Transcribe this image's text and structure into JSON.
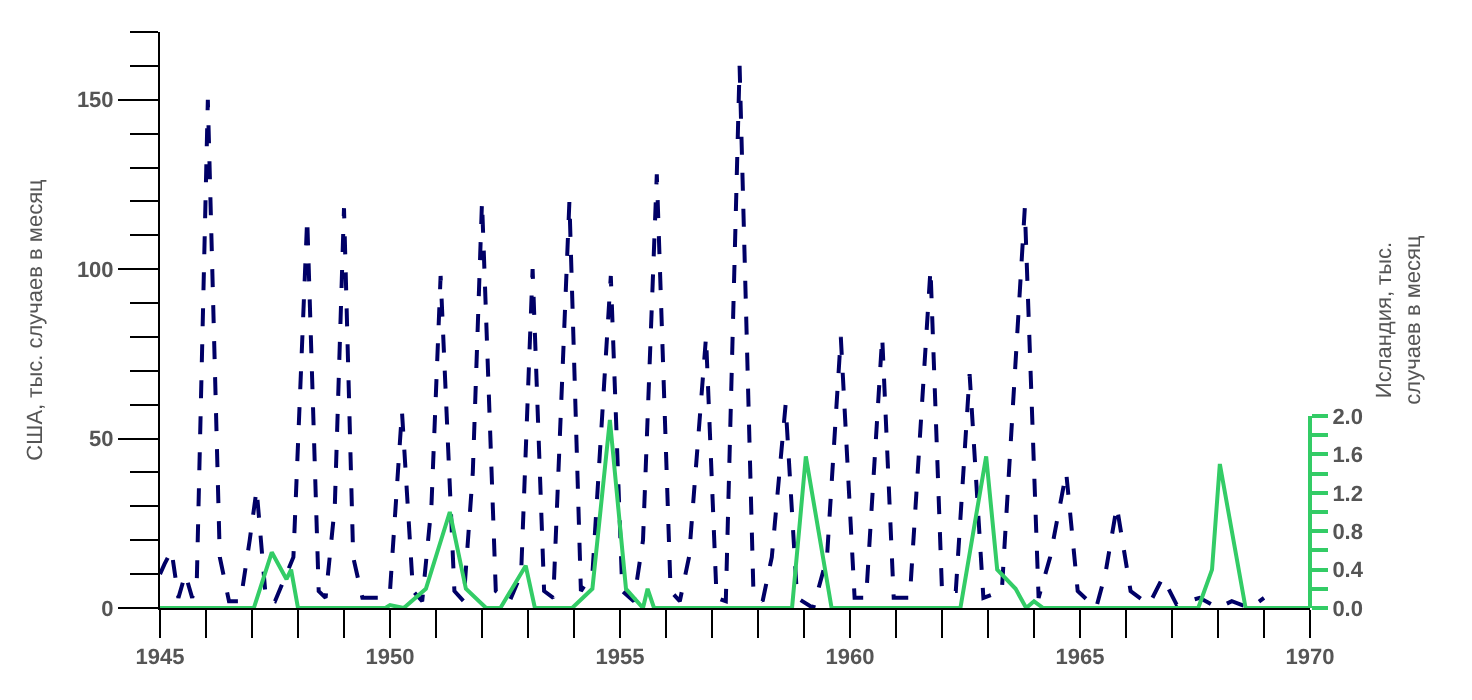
{
  "chart_data": {
    "type": "line",
    "ylabel": "США, тыс. случаев в месяц",
    "y2label": "Исландия, тыс. случаев в месяц",
    "xlim": [
      1945,
      1970
    ],
    "xticks": [
      1945,
      {
        "value": 1946,
        "label": null
      },
      {
        "value": 1947,
        "label": null
      },
      {
        "value": 1948,
        "label": null
      },
      {
        "value": 1949,
        "label": null
      },
      1950,
      {
        "value": 1951,
        "label": null
      },
      {
        "value": 1952,
        "label": null
      },
      {
        "value": 1953,
        "label": null
      },
      {
        "value": 1954,
        "label": null
      },
      1955,
      {
        "value": 1956,
        "label": null
      },
      {
        "value": 1957,
        "label": null
      },
      {
        "value": 1958,
        "label": null
      },
      {
        "value": 1959,
        "label": null
      },
      1960,
      {
        "value": 1961,
        "label": null
      },
      {
        "value": 1962,
        "label": null
      },
      {
        "value": 1963,
        "label": null
      },
      {
        "value": 1964,
        "label": null
      },
      1965,
      {
        "value": 1966,
        "label": null
      },
      {
        "value": 1967,
        "label": null
      },
      {
        "value": 1968,
        "label": null
      },
      {
        "value": 1969,
        "label": null
      },
      1970
    ],
    "ylim": [
      0,
      170
    ],
    "yticks": [
      0,
      {
        "value": 10,
        "label": null
      },
      {
        "value": 20,
        "label": null
      },
      {
        "value": 30,
        "label": null
      },
      {
        "value": 40,
        "label": null
      },
      50,
      {
        "value": 60,
        "label": null
      },
      {
        "value": 70,
        "label": null
      },
      {
        "value": 80,
        "label": null
      },
      {
        "value": 90,
        "label": null
      },
      100,
      {
        "value": 110,
        "label": null
      },
      {
        "value": 120,
        "label": null
      },
      {
        "value": 130,
        "label": null
      },
      {
        "value": 140,
        "label": null
      },
      150,
      {
        "value": 160,
        "label": null
      },
      {
        "value": 170,
        "label": null
      }
    ],
    "y2lim": [
      0,
      6
    ],
    "y2ticks": [
      {
        "value": 0,
        "label": "0.0"
      },
      {
        "value": 0.2,
        "label": null
      },
      {
        "value": 0.4,
        "label": "0.4"
      },
      {
        "value": 0.6,
        "label": null
      },
      {
        "value": 0.8,
        "label": "0.8"
      },
      {
        "value": 1.0,
        "label": null
      },
      {
        "value": 1.2,
        "label": "1.2"
      },
      {
        "value": 1.4,
        "label": null
      },
      {
        "value": 1.6,
        "label": "1.6"
      },
      {
        "value": 1.8,
        "label": null
      },
      {
        "value": 2.0,
        "label": "2.0"
      }
    ],
    "grid": false,
    "series": [
      {
        "color": "#000066",
        "line_style": "dashed",
        "x": [
          1945.0,
          1945.1,
          1945.25,
          1945.4,
          1945.55,
          1945.7,
          1945.8,
          1946.04,
          1946.3,
          1946.5,
          1946.75,
          1946.95,
          1947.1,
          1947.3,
          1947.5,
          1947.9,
          1948.2,
          1948.45,
          1948.6,
          1948.8,
          1949.0,
          1949.2,
          1949.4,
          1949.9,
          1950.0,
          1950.26,
          1950.5,
          1950.7,
          1950.9,
          1951.1,
          1951.4,
          1951.6,
          1951.8,
          1952.0,
          1952.3,
          1952.6,
          1952.85,
          1953.1,
          1953.35,
          1953.55,
          1953.9,
          1954.15,
          1954.4,
          1954.8,
          1955.05,
          1955.3,
          1955.5,
          1955.8,
          1956.1,
          1956.3,
          1956.5,
          1956.87,
          1957.1,
          1957.3,
          1957.6,
          1957.9,
          1958.1,
          1958.3,
          1958.6,
          1958.85,
          1959.2,
          1959.5,
          1959.8,
          1960.1,
          1960.35,
          1960.7,
          1960.95,
          1961.3,
          1961.75,
          1962.0,
          1962.3,
          1962.6,
          1962.9,
          1963.3,
          1963.8,
          1964.1,
          1964.35,
          1964.7,
          1964.95,
          1965.35,
          1965.55,
          1965.8,
          1966.1,
          1966.5,
          1966.8,
          1967.1,
          1967.6,
          1968.0,
          1968.3,
          1968.7,
          1969.0
        ],
        "values": [
          10,
          13,
          17,
          3,
          10,
          3,
          8,
          150,
          15,
          2,
          2,
          20,
          35,
          3,
          2,
          15,
          115,
          5,
          3,
          30,
          118,
          15,
          3,
          3,
          5,
          58,
          5,
          2,
          30,
          98,
          5,
          2,
          40,
          120,
          5,
          2,
          10,
          100,
          5,
          3,
          120,
          5,
          10,
          98,
          5,
          2,
          20,
          128,
          5,
          2,
          15,
          80,
          3,
          2,
          160,
          5,
          2,
          15,
          60,
          3,
          0,
          15,
          80,
          3,
          3,
          80,
          3,
          3,
          100,
          5,
          5,
          69,
          3,
          5,
          118,
          3,
          15,
          40,
          5,
          0,
          10,
          30,
          5,
          1,
          9,
          1,
          3,
          0,
          2,
          0,
          3
        ]
      },
      {
        "color": "#33cc66",
        "line_style": "solid",
        "axis": "y2",
        "x": [
          1945.0,
          1947.04,
          1947.43,
          1947.75,
          1947.85,
          1948.0,
          1949.9,
          1950.0,
          1950.3,
          1950.78,
          1951.3,
          1951.65,
          1952.09,
          1952.4,
          1952.95,
          1953.15,
          1953.96,
          1954.4,
          1954.78,
          1955.13,
          1955.5,
          1955.6,
          1955.74,
          1958.74,
          1959.04,
          1959.6,
          1962.4,
          1962.96,
          1963.2,
          1963.6,
          1963.83,
          1964.0,
          1964.2,
          1967.57,
          1967.87,
          1968.04,
          1968.6,
          1970.0
        ],
        "values": [
          0,
          0,
          0.58,
          0.3,
          0.4,
          0,
          0,
          0.03,
          0,
          0.2,
          1.0,
          0.2,
          0,
          0,
          0.44,
          0,
          0,
          0.2,
          1.96,
          0.2,
          0,
          0.2,
          0,
          0,
          1.58,
          0,
          0,
          1.58,
          0.4,
          0.2,
          0,
          0.07,
          0,
          0,
          0.4,
          1.5,
          0,
          0
        ]
      }
    ]
  }
}
